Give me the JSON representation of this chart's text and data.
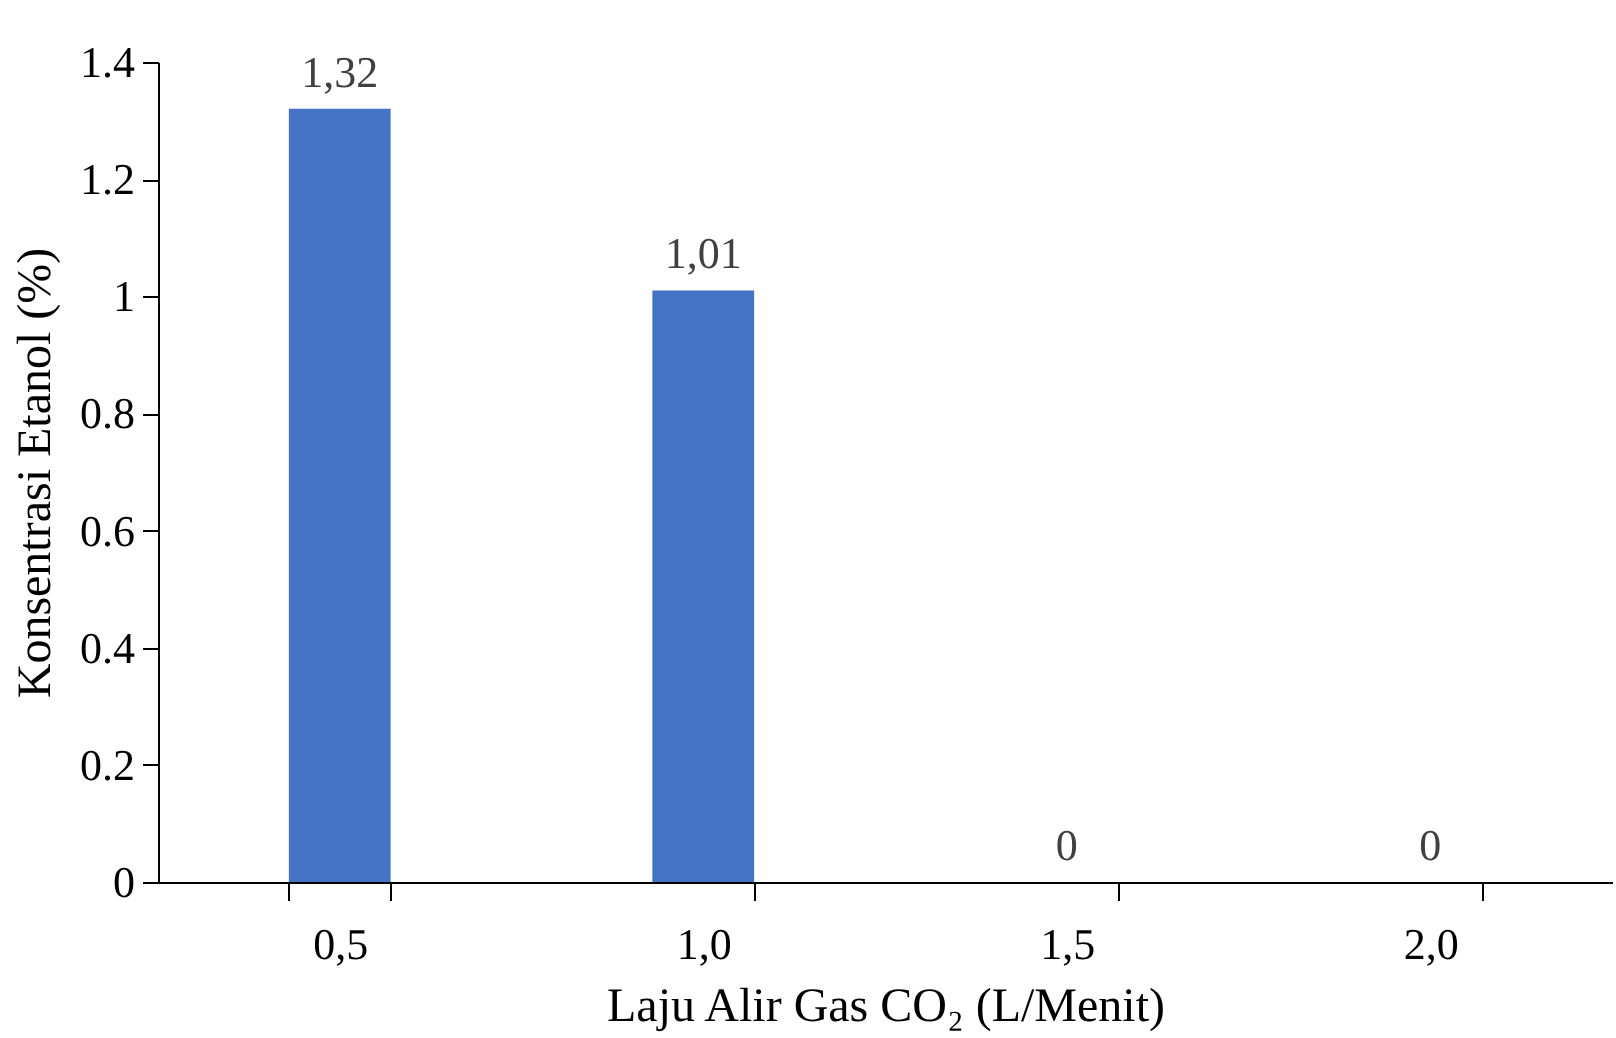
{
  "chart_data": {
    "type": "bar",
    "categories": [
      "0,5",
      "1,0",
      "1,5",
      "2,0"
    ],
    "values": [
      1.32,
      1.01,
      0,
      0
    ],
    "value_labels": [
      "1,32",
      "1,01",
      "0",
      "0"
    ],
    "color": "#4472c4",
    "xlabel": "Laju Alir Gas CO₂ (L/Menit)",
    "ylabel": "Konsentrasi Etanol (%)",
    "ylim": [
      0,
      1.4
    ],
    "yticks": [
      0,
      0.2,
      0.4,
      0.6,
      0.8,
      1,
      1.2,
      1.4
    ],
    "grid": false
  }
}
